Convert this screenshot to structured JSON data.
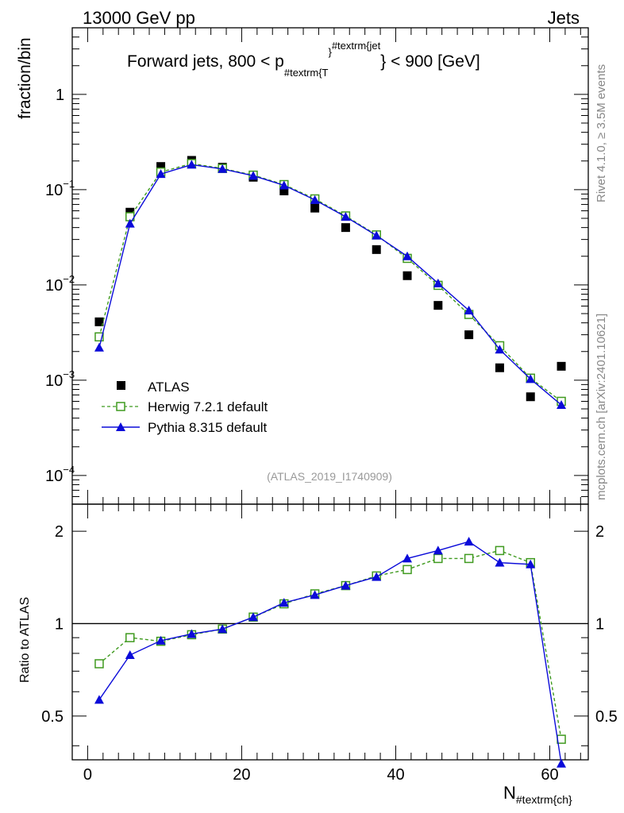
{
  "header": {
    "left": "13000 GeV pp",
    "right": "Jets"
  },
  "title": {
    "main": "Forward jets, 800 < p",
    "sub_T": "#textrm{T",
    "sup_jet": "#textrm{jet",
    "close_brace": "}",
    "tail": "} < 900 [GeV]"
  },
  "side_text": {
    "rivet": "Rivet 4.1.0, ≥ 3.5M events",
    "mcplots": "mcplots.cern.ch [arXiv:2401.10621]"
  },
  "watermark": "(ATLAS_2019_I1740909)",
  "colors": {
    "atlas": "#000000",
    "herwig": "#3f9a1f",
    "pythia": "#0b0bd9",
    "frame": "#000000"
  },
  "chart_data": [
    {
      "type": "scatter",
      "scale": "log",
      "ylabel": "fraction/bin",
      "xlim": [
        -2,
        65
      ],
      "ylim": [
        5e-05,
        5
      ],
      "yticks": [
        {
          "value": 0.0001,
          "base": "10",
          "exp": "−4"
        },
        {
          "value": 0.001,
          "base": "10",
          "exp": "−3"
        },
        {
          "value": 0.01,
          "base": "10",
          "exp": "−2"
        },
        {
          "value": 0.1,
          "base": "10",
          "exp": "−1"
        },
        {
          "value": 1,
          "base": "1",
          "exp": ""
        }
      ],
      "x": [
        1.5,
        5.5,
        9.5,
        13.5,
        17.5,
        21.5,
        25.5,
        29.5,
        33.5,
        37.5,
        41.5,
        45.5,
        49.5,
        53.5,
        57.5,
        61.5
      ],
      "series": [
        {
          "name": "ATLAS",
          "style": "square",
          "values": [
            0.0041,
            0.058,
            0.175,
            0.203,
            0.172,
            0.135,
            0.097,
            0.064,
            0.04,
            0.0235,
            0.0125,
            0.0061,
            0.003,
            0.00135,
            0.00067,
            0.0014
          ]
        },
        {
          "name": "Herwig 7.2.1 default",
          "style": "open-square-dashed",
          "values": [
            0.00285,
            0.052,
            0.153,
            0.188,
            0.167,
            0.142,
            0.113,
            0.08,
            0.053,
            0.0335,
            0.019,
            0.0099,
            0.0049,
            0.0023,
            0.00105,
            0.0006
          ]
        },
        {
          "name": "Pythia 8.315 default",
          "style": "triangle-line",
          "values": [
            0.0022,
            0.044,
            0.146,
            0.183,
            0.165,
            0.14,
            0.111,
            0.078,
            0.052,
            0.033,
            0.02,
            0.0104,
            0.0054,
            0.0021,
            0.00103,
            0.00055
          ]
        }
      ],
      "legend": [
        {
          "label": "ATLAS"
        },
        {
          "label": "Herwig 7.2.1 default"
        },
        {
          "label": "Pythia 8.315 default"
        }
      ]
    },
    {
      "type": "line",
      "scale": "log",
      "ylabel": "Ratio to ATLAS",
      "xlabel_main": "N",
      "xlabel_sub": "#textrm{ch}",
      "xlim": [
        -2,
        65
      ],
      "ylim": [
        0.36,
        2.45
      ],
      "yticks": [
        0.5,
        1,
        2
      ],
      "yticklabels": [
        "0.5",
        "1",
        "2"
      ],
      "xticks": [
        0,
        20,
        40,
        60
      ],
      "xticklabels": [
        "0",
        "20",
        "40",
        "60"
      ],
      "reference": 1,
      "x": [
        1.5,
        5.5,
        9.5,
        13.5,
        17.5,
        21.5,
        25.5,
        29.5,
        33.5,
        37.5,
        41.5,
        45.5,
        49.5,
        53.5,
        57.5,
        61.5
      ],
      "series": [
        {
          "name": "Herwig 7.2.1 default",
          "style": "open-square-dashed",
          "values": [
            0.74,
            0.9,
            0.876,
            0.92,
            0.96,
            1.05,
            1.16,
            1.25,
            1.33,
            1.43,
            1.5,
            1.63,
            1.63,
            1.73,
            1.58,
            0.42
          ]
        },
        {
          "name": "Pythia 8.315 default",
          "style": "triangle-line",
          "values": [
            0.565,
            0.79,
            0.88,
            0.925,
            0.96,
            1.05,
            1.17,
            1.24,
            1.33,
            1.42,
            1.63,
            1.73,
            1.85,
            1.58,
            1.56,
            0.35
          ]
        }
      ]
    }
  ]
}
